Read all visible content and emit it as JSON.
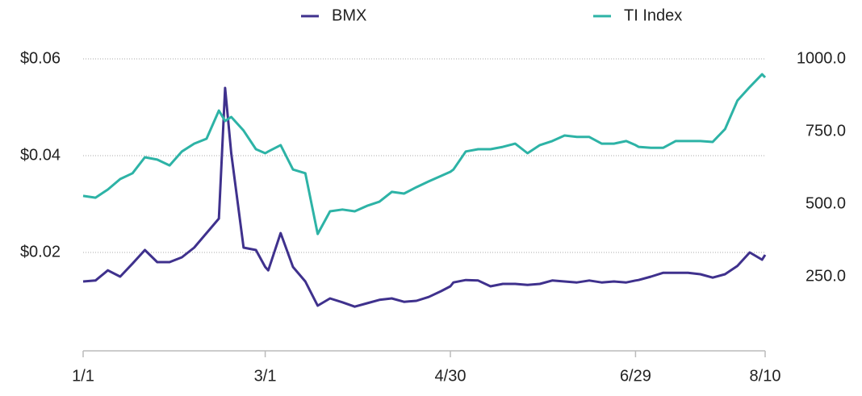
{
  "chart_data": {
    "type": "line",
    "x": [
      "1/1",
      "1/5",
      "1/9",
      "1/13",
      "1/17",
      "1/21",
      "1/25",
      "1/29",
      "2/2",
      "2/6",
      "2/10",
      "2/14",
      "2/16",
      "2/18",
      "2/22",
      "2/26",
      "3/1",
      "3/2",
      "3/6",
      "3/10",
      "3/14",
      "3/18",
      "3/22",
      "3/26",
      "3/30",
      "4/3",
      "4/7",
      "4/11",
      "4/15",
      "4/19",
      "4/23",
      "4/27",
      "4/30",
      "5/1",
      "5/5",
      "5/9",
      "5/13",
      "5/17",
      "5/21",
      "5/25",
      "5/29",
      "6/2",
      "6/6",
      "6/10",
      "6/14",
      "6/18",
      "6/22",
      "6/26",
      "6/29",
      "6/30",
      "7/4",
      "7/8",
      "7/12",
      "7/16",
      "7/20",
      "7/24",
      "7/28",
      "8/1",
      "8/5",
      "8/9",
      "8/10"
    ],
    "xlim": [
      "1/1",
      "8/10"
    ],
    "xticks": [
      "1/1",
      "3/1",
      "4/30",
      "6/29",
      "8/10"
    ],
    "series": [
      {
        "name": "BMX",
        "color": "#3f318d",
        "axis": "y",
        "values": [
          0.014,
          0.0142,
          0.0163,
          0.015,
          0.0177,
          0.0205,
          0.018,
          0.018,
          0.019,
          0.021,
          0.024,
          0.027,
          0.054,
          0.0405,
          0.021,
          0.0205,
          0.017,
          0.0163,
          0.024,
          0.017,
          0.014,
          0.009,
          0.0105,
          0.0097,
          0.0088,
          0.0095,
          0.0102,
          0.0105,
          0.0098,
          0.01,
          0.0108,
          0.012,
          0.013,
          0.0138,
          0.0143,
          0.0142,
          0.013,
          0.0135,
          0.0135,
          0.0133,
          0.0135,
          0.0142,
          0.014,
          0.0138,
          0.0142,
          0.0138,
          0.014,
          0.0138,
          0.0142,
          0.0143,
          0.015,
          0.0158,
          0.0158,
          0.0158,
          0.0155,
          0.0148,
          0.0155,
          0.0172,
          0.02,
          0.0185,
          0.0195
        ]
      },
      {
        "name": "TI Index",
        "color": "#2db3a6",
        "axis": "y2",
        "values": [
          528,
          522,
          550,
          586,
          606,
          661,
          653,
          633,
          681,
          708,
          725,
          822,
          786,
          800,
          753,
          689,
          675,
          681,
          703,
          619,
          606,
          397,
          475,
          481,
          475,
          494,
          508,
          542,
          536,
          558,
          578,
          597,
          611,
          619,
          681,
          689,
          689,
          697,
          708,
          675,
          703,
          717,
          736,
          731,
          731,
          708,
          708,
          717,
          703,
          697,
          694,
          694,
          717,
          717,
          717,
          714,
          758,
          856,
          903,
          947,
          936
        ]
      }
    ],
    "ylim": [
      0,
      0.06
    ],
    "yticks": [
      {
        "value": 0.02,
        "label": "$0.02"
      },
      {
        "value": 0.04,
        "label": "$0.04"
      },
      {
        "value": 0.06,
        "label": "$0.06"
      }
    ],
    "y2lim": [
      0,
      1000
    ],
    "y2ticks": [
      {
        "value": 250,
        "label": "250.0"
      },
      {
        "value": 500,
        "label": "500.0"
      },
      {
        "value": 750,
        "label": "750.0"
      },
      {
        "value": 1000,
        "label": "1000.0"
      }
    ],
    "grid": true,
    "legend": "top"
  }
}
